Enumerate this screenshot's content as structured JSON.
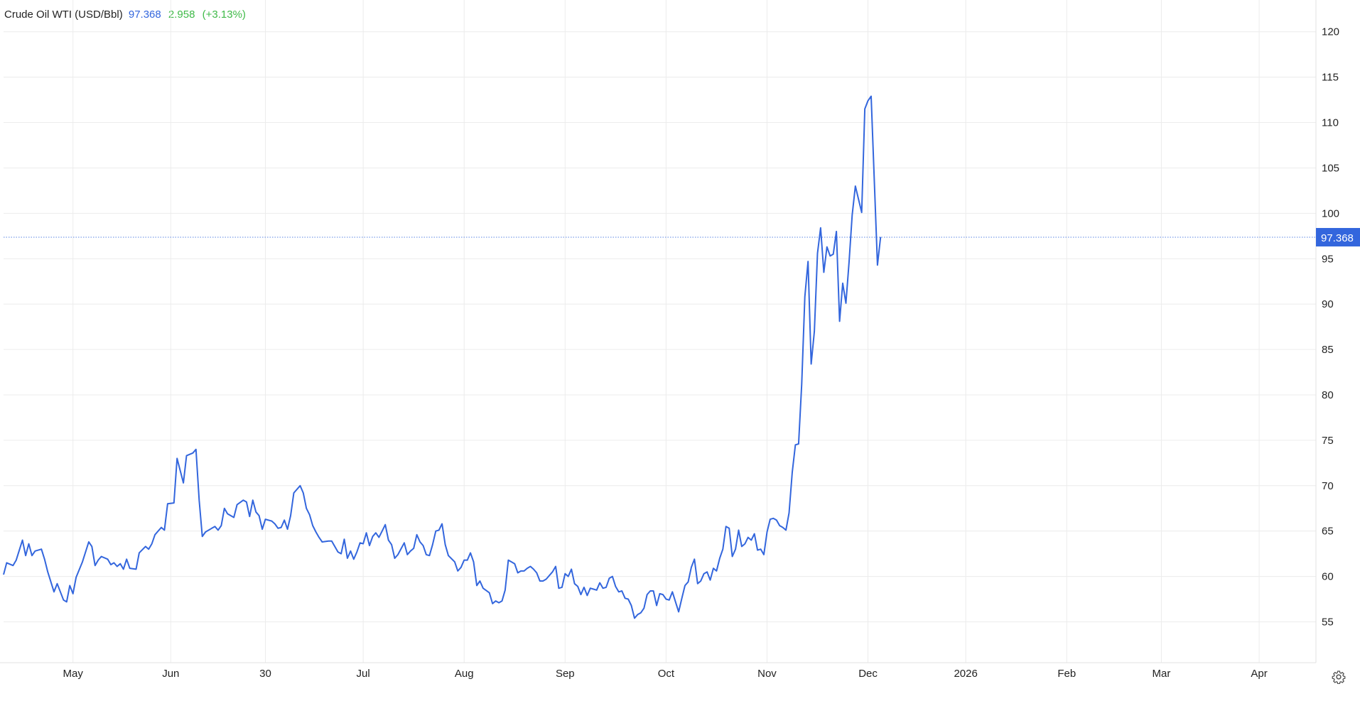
{
  "legend": {
    "name": "Crude Oil WTI (USD/Bbl)",
    "last": "97.368",
    "change": "2.958",
    "change_pct": "(+3.13%)"
  },
  "colors": {
    "line": "#3366dd",
    "grid": "#ececec",
    "up": "#3fba48",
    "badge_bg": "#3366dd",
    "badge_text": "#ffffff"
  },
  "settings_icon": "gear-icon",
  "chart_data": {
    "type": "line",
    "title": "Crude Oil WTI (USD/Bbl)",
    "xlabel": "",
    "ylabel": "",
    "ylim": [
      50.5,
      123.5
    ],
    "y_ticks": [
      55,
      60,
      65,
      70,
      75,
      80,
      85,
      90,
      95,
      100,
      105,
      110,
      115,
      120
    ],
    "y_tick_labels": [
      "55",
      "60",
      "65",
      "70",
      "75",
      "80",
      "85",
      "90",
      "95",
      "100",
      "105",
      "110",
      "115",
      "120"
    ],
    "x_ticks": [
      {
        "label": "May",
        "x": 22
      },
      {
        "label": "Jun",
        "x": 53
      },
      {
        "label": "30",
        "x": 83
      },
      {
        "label": "Jul",
        "x": 114
      },
      {
        "label": "Aug",
        "x": 146
      },
      {
        "label": "Sep",
        "x": 178
      },
      {
        "label": "Oct",
        "x": 210
      },
      {
        "label": "Nov",
        "x": 242
      },
      {
        "label": "Dec",
        "x": 274
      },
      {
        "label": "2026",
        "x": 305
      },
      {
        "label": "Feb",
        "x": 337
      },
      {
        "label": "Mar",
        "x": 367
      },
      {
        "label": "Apr",
        "x": 398
      }
    ],
    "xlim": [
      0,
      416
    ],
    "grid": true,
    "last_value_line": 97.368,
    "last_value_label": "97.368",
    "series": [
      {
        "values": [
          [
            0,
            60.2
          ],
          [
            1,
            61.5
          ],
          [
            3,
            61.2
          ],
          [
            4,
            61.8
          ],
          [
            6,
            64.0
          ],
          [
            7,
            62.3
          ],
          [
            8,
            63.6
          ],
          [
            9,
            62.3
          ],
          [
            10,
            62.8
          ],
          [
            12,
            63.0
          ],
          [
            13,
            61.9
          ],
          [
            14,
            60.5
          ],
          [
            16,
            58.3
          ],
          [
            17,
            59.2
          ],
          [
            19,
            57.4
          ],
          [
            20,
            57.2
          ],
          [
            21,
            59.0
          ],
          [
            22,
            58.1
          ],
          [
            23,
            59.9
          ],
          [
            25,
            61.6
          ],
          [
            27,
            63.8
          ],
          [
            28,
            63.3
          ],
          [
            29,
            61.2
          ],
          [
            30,
            61.8
          ],
          [
            31,
            62.2
          ],
          [
            33,
            61.9
          ],
          [
            34,
            61.3
          ],
          [
            35,
            61.5
          ],
          [
            36,
            61.1
          ],
          [
            37,
            61.4
          ],
          [
            38,
            60.8
          ],
          [
            39,
            61.9
          ],
          [
            40,
            60.9
          ],
          [
            42,
            60.8
          ],
          [
            43,
            62.6
          ],
          [
            45,
            63.3
          ],
          [
            46,
            63.0
          ],
          [
            47,
            63.6
          ],
          [
            48,
            64.6
          ],
          [
            50,
            65.4
          ],
          [
            51,
            65.1
          ],
          [
            52,
            68.0
          ],
          [
            54,
            68.1
          ],
          [
            55,
            73.0
          ],
          [
            57,
            70.3
          ],
          [
            58,
            73.3
          ],
          [
            60,
            73.6
          ],
          [
            61,
            74.0
          ],
          [
            62,
            68.4
          ],
          [
            63,
            64.4
          ],
          [
            64,
            64.9
          ],
          [
            66,
            65.3
          ],
          [
            67,
            65.5
          ],
          [
            68,
            65.1
          ],
          [
            69,
            65.6
          ],
          [
            70,
            67.5
          ],
          [
            71,
            66.9
          ],
          [
            73,
            66.5
          ],
          [
            74,
            67.9
          ],
          [
            76,
            68.4
          ],
          [
            77,
            68.2
          ],
          [
            78,
            66.6
          ],
          [
            79,
            68.4
          ],
          [
            80,
            67.1
          ],
          [
            81,
            66.7
          ],
          [
            82,
            65.2
          ],
          [
            83,
            66.3
          ],
          [
            85,
            66.1
          ],
          [
            86,
            65.8
          ],
          [
            87,
            65.3
          ],
          [
            88,
            65.4
          ],
          [
            89,
            66.2
          ],
          [
            90,
            65.2
          ],
          [
            91,
            66.7
          ],
          [
            92,
            69.2
          ],
          [
            94,
            70.0
          ],
          [
            95,
            69.2
          ],
          [
            96,
            67.5
          ],
          [
            97,
            66.8
          ],
          [
            98,
            65.6
          ],
          [
            99,
            64.9
          ],
          [
            100,
            64.3
          ],
          [
            101,
            63.8
          ],
          [
            103,
            63.9
          ],
          [
            104,
            63.9
          ],
          [
            106,
            62.7
          ],
          [
            107,
            62.5
          ],
          [
            108,
            64.1
          ],
          [
            109,
            62.0
          ],
          [
            110,
            62.8
          ],
          [
            111,
            61.9
          ],
          [
            112,
            62.7
          ],
          [
            113,
            63.7
          ],
          [
            114,
            63.6
          ],
          [
            115,
            64.8
          ],
          [
            116,
            63.4
          ],
          [
            117,
            64.4
          ],
          [
            118,
            64.8
          ],
          [
            119,
            64.3
          ],
          [
            120,
            65.0
          ],
          [
            121,
            65.7
          ],
          [
            122,
            64.0
          ],
          [
            123,
            63.5
          ],
          [
            124,
            62.0
          ],
          [
            125,
            62.4
          ],
          [
            127,
            63.7
          ],
          [
            128,
            62.4
          ],
          [
            129,
            62.8
          ],
          [
            130,
            63.1
          ],
          [
            131,
            64.6
          ],
          [
            132,
            63.8
          ],
          [
            133,
            63.4
          ],
          [
            134,
            62.4
          ],
          [
            135,
            62.3
          ],
          [
            136,
            63.5
          ],
          [
            137,
            65.0
          ],
          [
            138,
            65.1
          ],
          [
            139,
            65.8
          ],
          [
            140,
            63.5
          ],
          [
            141,
            62.3
          ],
          [
            143,
            61.6
          ],
          [
            144,
            60.6
          ],
          [
            145,
            61.0
          ],
          [
            146,
            61.8
          ],
          [
            147,
            61.8
          ],
          [
            148,
            62.6
          ],
          [
            149,
            61.6
          ],
          [
            150,
            59.0
          ],
          [
            151,
            59.5
          ],
          [
            152,
            58.7
          ],
          [
            154,
            58.2
          ],
          [
            155,
            57.0
          ],
          [
            156,
            57.3
          ],
          [
            157,
            57.1
          ],
          [
            158,
            57.3
          ],
          [
            159,
            58.5
          ],
          [
            160,
            61.8
          ],
          [
            161,
            61.6
          ],
          [
            162,
            61.4
          ],
          [
            163,
            60.4
          ],
          [
            164,
            60.6
          ],
          [
            165,
            60.6
          ],
          [
            166,
            60.9
          ],
          [
            167,
            61.1
          ],
          [
            168,
            60.8
          ],
          [
            169,
            60.4
          ],
          [
            170,
            59.5
          ],
          [
            171,
            59.5
          ],
          [
            172,
            59.7
          ],
          [
            174,
            60.5
          ],
          [
            175,
            61.1
          ],
          [
            176,
            58.7
          ],
          [
            177,
            58.8
          ],
          [
            178,
            60.3
          ],
          [
            179,
            60.0
          ],
          [
            180,
            60.8
          ],
          [
            181,
            59.2
          ],
          [
            182,
            58.9
          ],
          [
            183,
            58.0
          ],
          [
            184,
            58.8
          ],
          [
            185,
            57.9
          ],
          [
            186,
            58.7
          ],
          [
            187,
            58.6
          ],
          [
            188,
            58.5
          ],
          [
            189,
            59.3
          ],
          [
            190,
            58.7
          ],
          [
            191,
            58.8
          ],
          [
            192,
            59.8
          ],
          [
            193,
            60.0
          ],
          [
            194,
            58.9
          ],
          [
            195,
            58.3
          ],
          [
            196,
            58.4
          ],
          [
            197,
            57.6
          ],
          [
            198,
            57.5
          ],
          [
            199,
            56.8
          ],
          [
            200,
            55.4
          ],
          [
            201,
            55.8
          ],
          [
            202,
            56.0
          ],
          [
            203,
            56.5
          ],
          [
            204,
            58.0
          ],
          [
            205,
            58.4
          ],
          [
            206,
            58.4
          ],
          [
            207,
            56.8
          ],
          [
            208,
            58.1
          ],
          [
            209,
            58.0
          ],
          [
            210,
            57.5
          ],
          [
            211,
            57.4
          ],
          [
            212,
            58.3
          ],
          [
            213,
            57.2
          ],
          [
            214,
            56.1
          ],
          [
            215,
            57.6
          ],
          [
            216,
            59.0
          ],
          [
            217,
            59.4
          ],
          [
            218,
            61.0
          ],
          [
            219,
            61.9
          ],
          [
            220,
            59.2
          ],
          [
            221,
            59.5
          ],
          [
            222,
            60.3
          ],
          [
            223,
            60.5
          ],
          [
            224,
            59.6
          ],
          [
            225,
            60.9
          ],
          [
            226,
            60.6
          ],
          [
            227,
            62.0
          ],
          [
            228,
            63.0
          ],
          [
            229,
            65.5
          ],
          [
            230,
            65.3
          ],
          [
            231,
            62.2
          ],
          [
            232,
            63.0
          ],
          [
            233,
            65.1
          ],
          [
            234,
            63.3
          ],
          [
            235,
            63.6
          ],
          [
            236,
            64.3
          ],
          [
            237,
            64.0
          ],
          [
            238,
            64.7
          ],
          [
            239,
            62.9
          ],
          [
            240,
            63.0
          ],
          [
            241,
            62.4
          ],
          [
            242,
            64.9
          ],
          [
            243,
            66.3
          ],
          [
            244,
            66.4
          ],
          [
            245,
            66.2
          ],
          [
            246,
            65.6
          ],
          [
            247,
            65.4
          ],
          [
            248,
            65.1
          ],
          [
            249,
            67.0
          ],
          [
            250,
            71.5
          ],
          [
            251,
            74.5
          ],
          [
            252,
            74.6
          ],
          [
            253,
            81.2
          ],
          [
            254,
            90.8
          ],
          [
            255,
            94.7
          ],
          [
            256,
            83.4
          ],
          [
            257,
            87.0
          ],
          [
            258,
            95.6
          ],
          [
            259,
            98.4
          ],
          [
            260,
            93.5
          ],
          [
            261,
            96.3
          ],
          [
            262,
            95.3
          ],
          [
            263,
            95.5
          ],
          [
            264,
            98.0
          ],
          [
            265,
            88.1
          ],
          [
            266,
            92.3
          ],
          [
            267,
            90.1
          ],
          [
            268,
            94.6
          ],
          [
            269,
            99.8
          ],
          [
            270,
            103.0
          ],
          [
            272,
            100.1
          ],
          [
            273,
            111.5
          ],
          [
            274,
            112.4
          ],
          [
            275,
            112.9
          ],
          [
            277,
            94.3
          ],
          [
            278,
            97.4
          ]
        ]
      }
    ]
  }
}
